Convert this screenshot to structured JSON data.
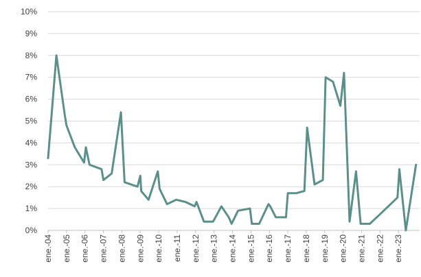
{
  "chart_data": {
    "type": "line",
    "title": "",
    "xlabel": "",
    "ylabel": "",
    "ylim": [
      0,
      10
    ],
    "y_ticks": [
      "0%",
      "1%",
      "2%",
      "3%",
      "4%",
      "5%",
      "6%",
      "7%",
      "8%",
      "9%",
      "10%"
    ],
    "x_ticks": [
      "ene.-04",
      "ene.-05",
      "ene.-06",
      "ene.-07",
      "ene.-08",
      "ene.-09",
      "ene.-10",
      "ene.-11",
      "ene.-12",
      "ene.-13",
      "ene.-14",
      "ene.-15",
      "ene.-16",
      "ene.-17",
      "ene.-18",
      "ene.-19",
      "ene.-20",
      "ene.-21",
      "ene.-22",
      "ene.-23"
    ],
    "grid": true,
    "line_color": "#5b8f8a",
    "series": [
      {
        "points": [
          [
            2004.0,
            3.3
          ],
          [
            2004.45,
            8.0
          ],
          [
            2004.9,
            5.3
          ],
          [
            2005.0,
            4.8
          ],
          [
            2005.45,
            3.8
          ],
          [
            2005.95,
            3.1
          ],
          [
            2006.05,
            3.8
          ],
          [
            2006.25,
            3.0
          ],
          [
            2006.9,
            2.8
          ],
          [
            2007.0,
            2.3
          ],
          [
            2007.45,
            2.6
          ],
          [
            2007.95,
            5.4
          ],
          [
            2008.15,
            2.2
          ],
          [
            2008.85,
            2.0
          ],
          [
            2009.0,
            2.5
          ],
          [
            2009.05,
            1.8
          ],
          [
            2009.45,
            1.4
          ],
          [
            2009.95,
            2.7
          ],
          [
            2010.05,
            1.9
          ],
          [
            2010.45,
            1.2
          ],
          [
            2010.95,
            1.4
          ],
          [
            2011.45,
            1.3
          ],
          [
            2011.95,
            1.1
          ],
          [
            2012.05,
            1.3
          ],
          [
            2012.45,
            0.4
          ],
          [
            2012.95,
            0.4
          ],
          [
            2013.4,
            1.1
          ],
          [
            2013.8,
            0.6
          ],
          [
            2013.95,
            0.3
          ],
          [
            2014.3,
            0.9
          ],
          [
            2014.95,
            1.0
          ],
          [
            2015.05,
            0.3
          ],
          [
            2015.45,
            0.3
          ],
          [
            2015.95,
            1.2
          ],
          [
            2016.05,
            1.1
          ],
          [
            2016.35,
            0.6
          ],
          [
            2016.9,
            0.6
          ],
          [
            2017.0,
            1.7
          ],
          [
            2017.45,
            1.7
          ],
          [
            2017.9,
            1.8
          ],
          [
            2018.05,
            4.7
          ],
          [
            2018.45,
            2.1
          ],
          [
            2018.9,
            2.3
          ],
          [
            2019.05,
            7.0
          ],
          [
            2019.45,
            6.8
          ],
          [
            2019.85,
            5.7
          ],
          [
            2020.05,
            7.2
          ],
          [
            2020.35,
            0.4
          ],
          [
            2020.7,
            2.7
          ],
          [
            2020.95,
            0.3
          ],
          [
            2021.45,
            0.3
          ],
          [
            2021.95,
            0.7
          ],
          [
            2022.45,
            1.1
          ],
          [
            2022.95,
            1.5
          ],
          [
            2023.05,
            2.8
          ],
          [
            2023.4,
            0.0
          ],
          [
            2023.95,
            3.0
          ]
        ]
      }
    ]
  }
}
